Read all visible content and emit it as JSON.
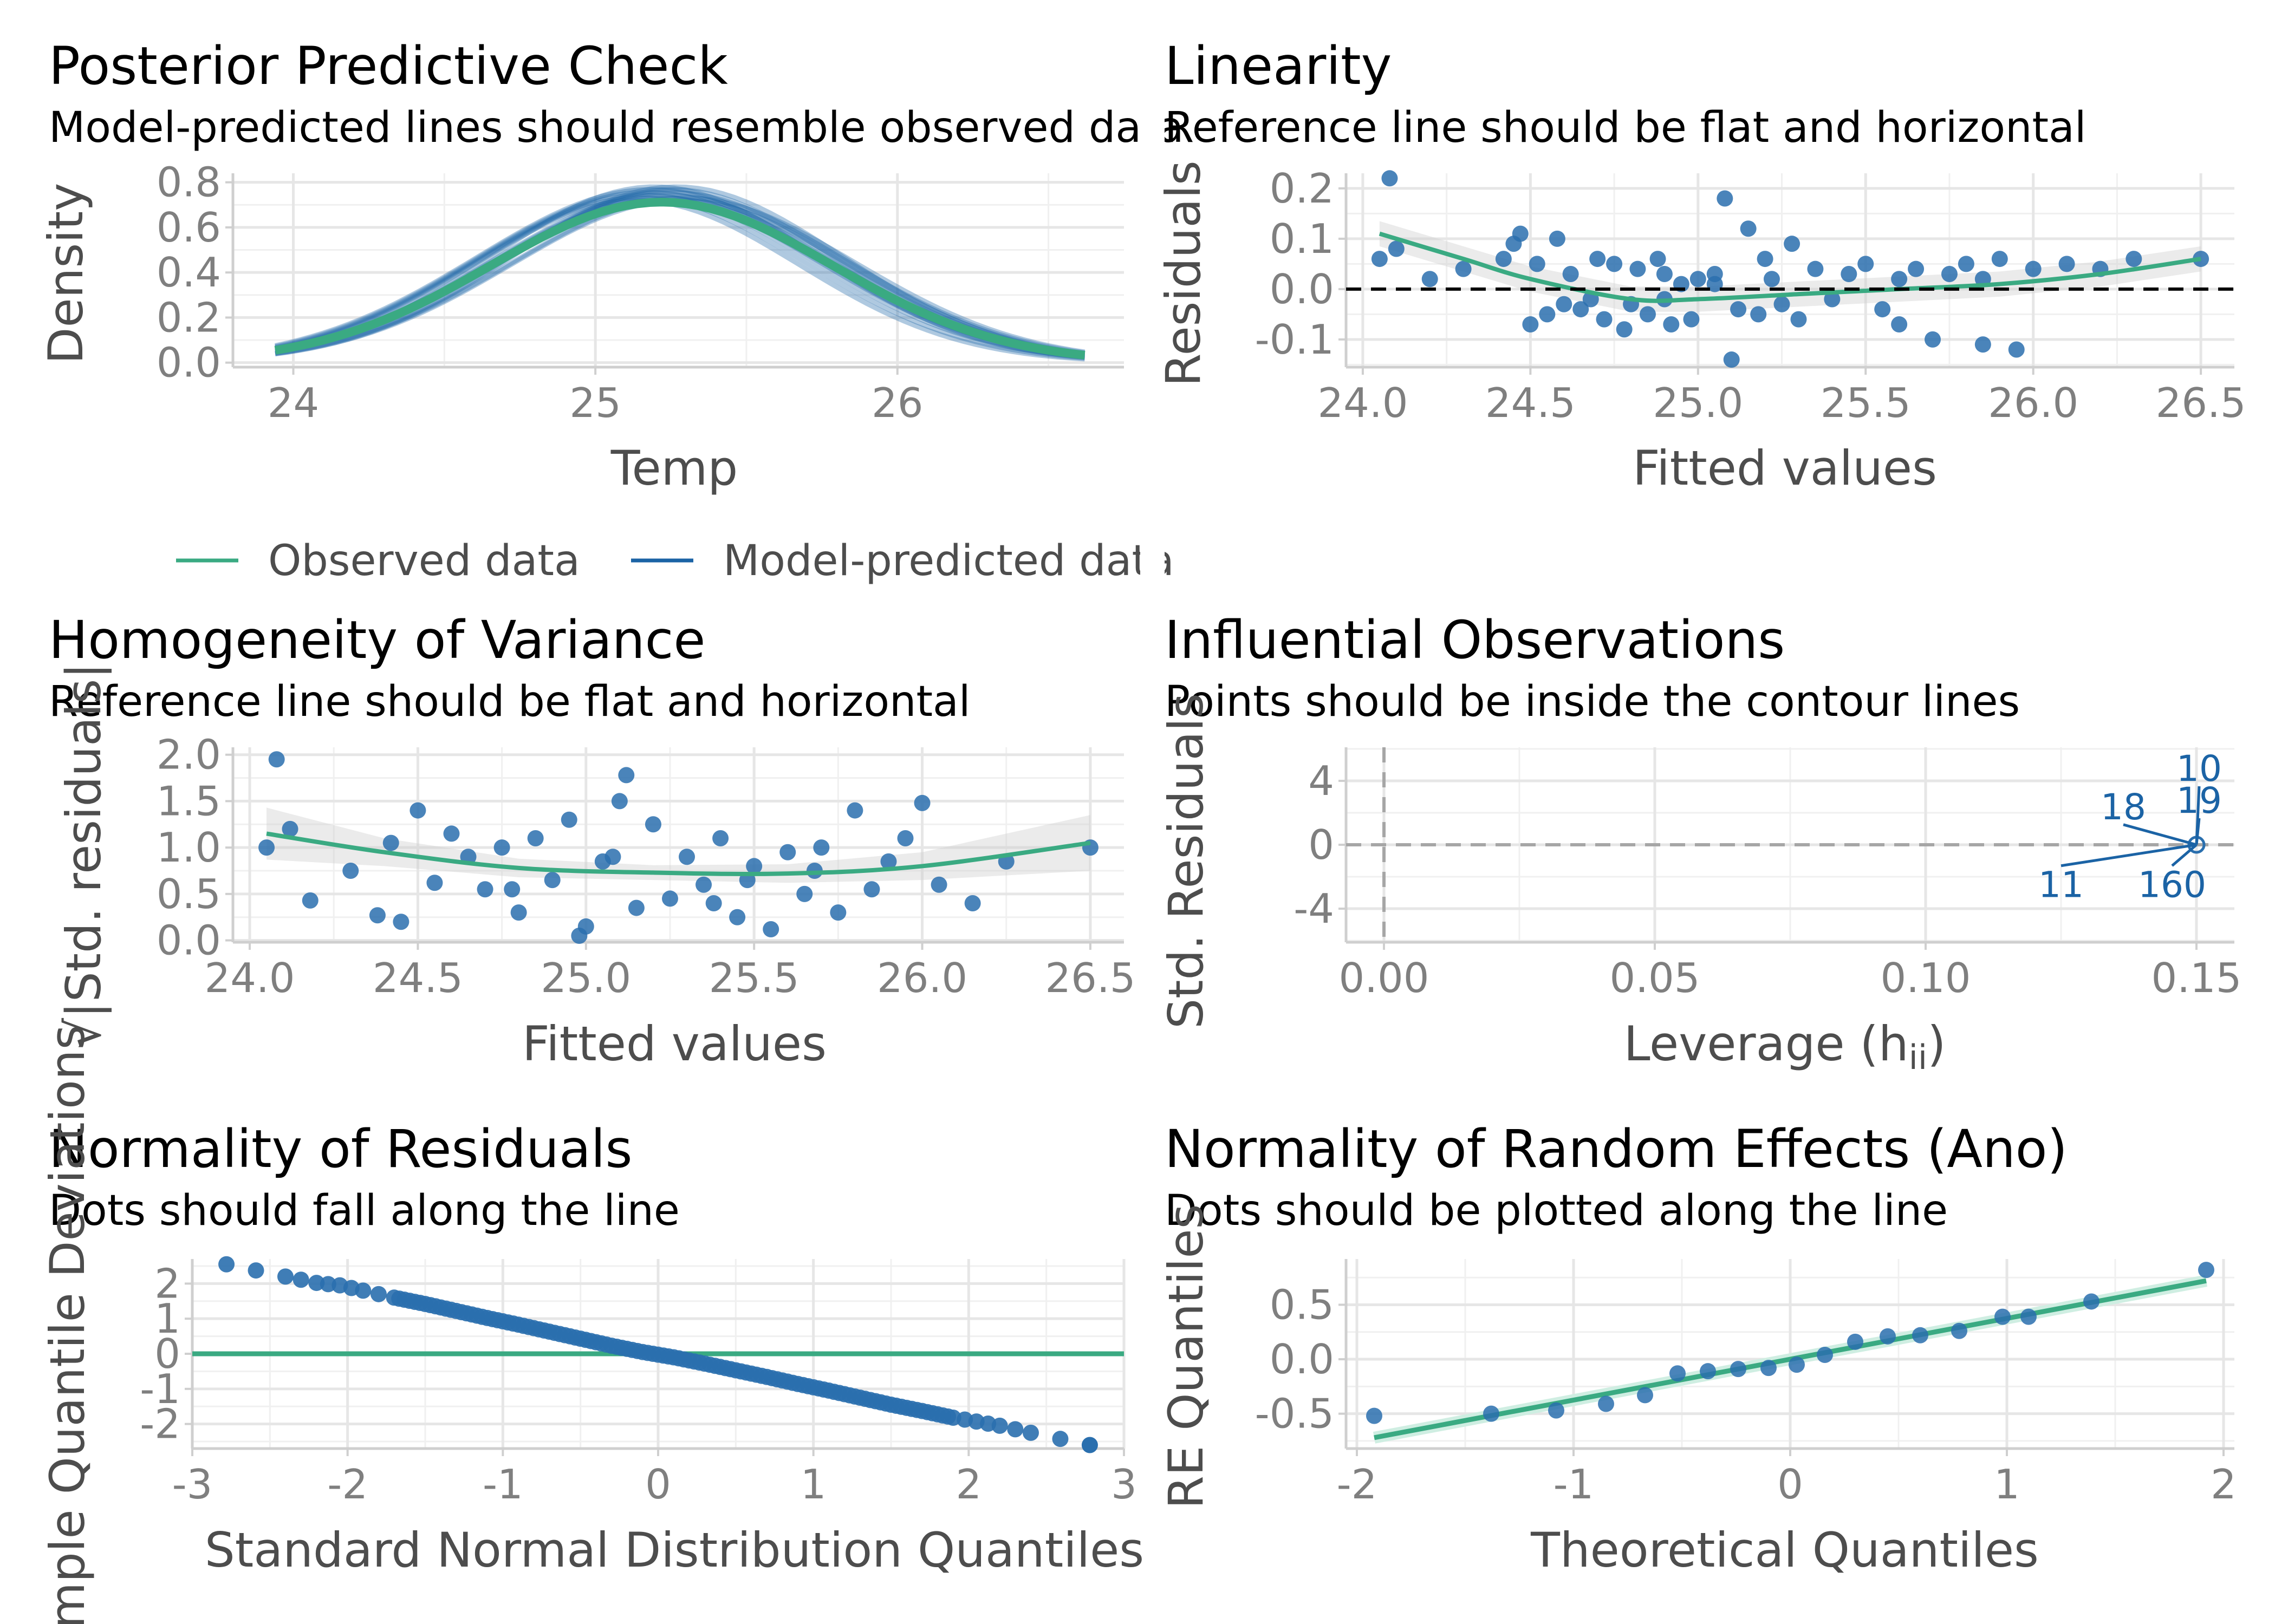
{
  "colors": {
    "observed": "#3aaa82",
    "predicted": "#1b63a5",
    "points": "#2a6fae",
    "grid": "#e6e6e6",
    "axis": "#cfcfcf",
    "tick_text": "#7f7f7f",
    "axis_title": "#4d4d4d"
  },
  "chart_data": [
    {
      "id": "ppc",
      "type": "line",
      "title": "Posterior Predictive Check",
      "subtitle": "Model-predicted lines should resemble observed data",
      "xlabel": "Temp",
      "ylabel": "Density",
      "xlim": [
        23.8,
        26.75
      ],
      "ylim": [
        -0.02,
        0.84
      ],
      "xticks": [
        24,
        25,
        26
      ],
      "xtick_labels": [
        "24",
        "25",
        "26"
      ],
      "yticks": [
        0.0,
        0.2,
        0.4,
        0.6,
        0.8
      ],
      "ytick_labels": [
        "0.0",
        "0.2",
        "0.4",
        "0.6",
        "0.8"
      ],
      "grid": true,
      "density_mean": 25.22,
      "density_sd": 0.565,
      "series": [
        {
          "name": "Observed data",
          "x": [
            23.94,
            24.2,
            24.5,
            24.8,
            25.0,
            25.22,
            25.5,
            25.8,
            26.1,
            26.4,
            26.62
          ],
          "y": [
            0.025,
            0.08,
            0.24,
            0.53,
            0.65,
            0.71,
            0.63,
            0.39,
            0.18,
            0.07,
            0.03
          ]
        },
        {
          "name": "Model-predicted data",
          "x": [
            23.94,
            24.2,
            24.5,
            24.8,
            25.0,
            25.22,
            25.5,
            25.8,
            26.1,
            26.4,
            26.62
          ],
          "y": [
            0.035,
            0.09,
            0.26,
            0.56,
            0.7,
            0.75,
            0.66,
            0.4,
            0.17,
            0.06,
            0.03
          ]
        }
      ],
      "legend": {
        "position": "bottom",
        "entries": [
          "Observed data",
          "Model-predicted data"
        ]
      }
    },
    {
      "id": "linearity",
      "type": "scatter",
      "title": "Linearity",
      "subtitle": "Reference line should be flat and horizontal",
      "xlabel": "Fitted values",
      "ylabel": "Residuals",
      "xlim": [
        23.95,
        26.6
      ],
      "ylim": [
        -0.155,
        0.23
      ],
      "xticks": [
        24.0,
        24.5,
        25.0,
        25.5,
        26.0,
        26.5
      ],
      "xtick_labels": [
        "24.0",
        "24.5",
        "25.0",
        "25.5",
        "26.0",
        "26.5"
      ],
      "yticks": [
        -0.1,
        0.0,
        0.1,
        0.2
      ],
      "ytick_labels": [
        "-0.1",
        "0.0",
        "0.1",
        "0.2"
      ],
      "grid": true,
      "reference_y": 0,
      "smooth": {
        "x": [
          24.05,
          24.3,
          24.5,
          24.8,
          25.0,
          25.3,
          25.6,
          25.9,
          26.2,
          26.5
        ],
        "y": [
          0.11,
          0.06,
          0.02,
          -0.02,
          -0.02,
          -0.01,
          0.0,
          0.01,
          0.03,
          0.06
        ]
      },
      "points": {
        "x": [
          24.08,
          24.05,
          24.1,
          24.2,
          24.3,
          24.42,
          24.45,
          24.47,
          24.5,
          24.52,
          24.55,
          24.58,
          24.6,
          24.62,
          24.65,
          24.68,
          24.7,
          24.72,
          24.75,
          24.78,
          24.8,
          24.82,
          24.85,
          24.88,
          24.9,
          24.92,
          24.95,
          24.98,
          25.0,
          25.05,
          25.08,
          25.1,
          25.12,
          25.15,
          25.18,
          25.2,
          25.22,
          25.25,
          25.28,
          25.3,
          25.35,
          25.4,
          25.45,
          25.5,
          25.55,
          25.6,
          25.65,
          25.7,
          25.75,
          25.8,
          25.85,
          25.9,
          25.95,
          26.0,
          26.1,
          26.2,
          26.3,
          26.5,
          24.9,
          25.05,
          25.6,
          25.85
        ],
        "y": [
          0.22,
          0.06,
          0.08,
          0.02,
          0.04,
          0.06,
          0.09,
          0.11,
          -0.07,
          0.05,
          -0.05,
          0.1,
          -0.03,
          0.03,
          -0.04,
          -0.02,
          0.06,
          -0.06,
          0.05,
          -0.08,
          -0.03,
          0.04,
          -0.05,
          0.06,
          -0.02,
          -0.07,
          0.01,
          -0.06,
          0.02,
          0.03,
          0.18,
          -0.14,
          -0.04,
          0.12,
          -0.05,
          0.06,
          0.02,
          -0.03,
          0.09,
          -0.06,
          0.04,
          -0.02,
          0.03,
          0.05,
          -0.04,
          0.02,
          0.04,
          -0.1,
          0.03,
          0.05,
          -0.11,
          0.06,
          -0.12,
          0.04,
          0.05,
          0.04,
          0.06,
          0.06,
          0.03,
          0.01,
          -0.07,
          0.02
        ]
      }
    },
    {
      "id": "homogeneity",
      "type": "scatter",
      "title": "Homogeneity of Variance",
      "subtitle": "Reference line should be flat and horizontal",
      "xlabel": "Fitted values",
      "ylabel": "√|Std. residuals|",
      "xlim": [
        23.95,
        26.6
      ],
      "ylim": [
        -0.02,
        2.08
      ],
      "xticks": [
        24.0,
        24.5,
        25.0,
        25.5,
        26.0,
        26.5
      ],
      "xtick_labels": [
        "24.0",
        "24.5",
        "25.0",
        "25.5",
        "26.0",
        "26.5"
      ],
      "yticks": [
        0.0,
        0.5,
        1.0,
        1.5,
        2.0
      ],
      "ytick_labels": [
        "0.0",
        "0.5",
        "1.0",
        "1.5",
        "2.0"
      ],
      "grid": true,
      "smooth": {
        "x": [
          24.05,
          24.4,
          24.8,
          25.2,
          25.6,
          26.0,
          26.5
        ],
        "y": [
          1.15,
          0.95,
          0.78,
          0.73,
          0.72,
          0.8,
          1.05
        ]
      },
      "points": {
        "x": [
          24.05,
          24.08,
          24.12,
          24.18,
          24.3,
          24.38,
          24.42,
          24.45,
          24.5,
          24.55,
          24.6,
          24.65,
          24.7,
          24.75,
          24.8,
          24.85,
          24.9,
          24.95,
          25.0,
          25.05,
          25.1,
          25.12,
          25.15,
          25.2,
          25.25,
          25.3,
          25.35,
          25.4,
          25.45,
          25.5,
          25.55,
          25.6,
          25.65,
          25.7,
          25.75,
          25.8,
          25.85,
          25.9,
          25.95,
          26.0,
          26.05,
          26.15,
          26.25,
          26.5,
          24.78,
          25.08,
          25.48,
          25.68,
          24.98,
          25.38
        ],
        "y": [
          1.0,
          1.95,
          1.2,
          0.43,
          0.75,
          0.27,
          1.05,
          0.2,
          1.4,
          0.62,
          1.15,
          0.9,
          0.55,
          1.0,
          0.3,
          1.1,
          0.65,
          1.3,
          0.15,
          0.85,
          1.5,
          1.78,
          0.35,
          1.25,
          0.45,
          0.9,
          0.6,
          1.1,
          0.25,
          0.8,
          0.12,
          0.95,
          0.5,
          1.0,
          0.3,
          1.4,
          0.55,
          0.85,
          1.1,
          1.48,
          0.6,
          0.4,
          0.85,
          1.0,
          0.55,
          0.9,
          0.65,
          0.75,
          0.05,
          0.4
        ]
      }
    },
    {
      "id": "influential",
      "type": "scatter",
      "title": "Influential Observations",
      "subtitle": "Points should be inside the contour lines",
      "xlabel": "Leverage (h",
      "xlabel_sub": "ii",
      "xlabel_close": ")",
      "ylabel": "Std. Residuals",
      "xlim": [
        -0.007,
        0.157
      ],
      "ylim": [
        -6.1,
        6.1
      ],
      "xticks": [
        0.0,
        0.05,
        0.1,
        0.15
      ],
      "xtick_labels": [
        "0.00",
        "0.05",
        "0.10",
        "0.15"
      ],
      "yticks": [
        -4,
        0,
        4
      ],
      "ytick_labels": [
        "-4",
        "0",
        "4"
      ],
      "grid": true,
      "points": {
        "x": [
          0.15
        ],
        "y": [
          0.0
        ]
      },
      "labels": [
        {
          "text": "10",
          "x": 0.1505,
          "y": 4.0
        },
        {
          "text": "19",
          "x": 0.1505,
          "y": 2.0
        },
        {
          "text": "18",
          "x": 0.1365,
          "y": 1.6
        },
        {
          "text": "11",
          "x": 0.125,
          "y": -2.6
        },
        {
          "text": "160",
          "x": 0.1455,
          "y": -2.6
        }
      ]
    },
    {
      "id": "qq_residuals",
      "type": "scatter",
      "title": "Normality of Residuals",
      "subtitle": "Dots should fall along the line",
      "xlabel": "Standard Normal Distribution Quantiles",
      "ylabel": "Sample Quantile Deviations",
      "xlim": [
        -3.0,
        3.0
      ],
      "ylim": [
        -2.7,
        2.7
      ],
      "xticks": [
        -3,
        -2,
        -1,
        0,
        1,
        2,
        3
      ],
      "xtick_labels": [
        "-3",
        "-2",
        "-1",
        "0",
        "1",
        "2",
        "3"
      ],
      "yticks": [
        -2,
        -1,
        0,
        1,
        2
      ],
      "ytick_labels": [
        "-2",
        "-1",
        "0",
        "1",
        "2"
      ],
      "grid": true,
      "reference_y": 0,
      "points": {
        "x": [
          -2.78,
          -2.4,
          -2.2,
          -2.05,
          -1.9,
          -1.7,
          -1.5,
          -1.3,
          -1.1,
          -0.9,
          -0.7,
          -0.5,
          -0.3,
          -0.1,
          0.1,
          0.3,
          0.5,
          0.7,
          0.9,
          1.1,
          1.3,
          1.5,
          1.7,
          1.9,
          2.05,
          2.2,
          2.4,
          2.78
        ],
        "y": [
          2.55,
          2.2,
          2.02,
          1.95,
          1.8,
          1.6,
          1.42,
          1.22,
          1.02,
          0.83,
          0.63,
          0.43,
          0.23,
          0.05,
          -0.1,
          -0.28,
          -0.47,
          -0.66,
          -0.86,
          -1.05,
          -1.25,
          -1.45,
          -1.63,
          -1.82,
          -1.93,
          -2.05,
          -2.25,
          -2.6
        ]
      }
    },
    {
      "id": "qq_random_effects",
      "type": "scatter",
      "title": "Normality of Random Effects (Ano)",
      "subtitle": "Dots should be plotted along the line",
      "xlabel": "Theoretical Quantiles",
      "ylabel": "RE Quantiles",
      "xlim": [
        -2.05,
        2.05
      ],
      "ylim": [
        -0.82,
        0.92
      ],
      "xticks": [
        -2,
        -1,
        0,
        1,
        2
      ],
      "xtick_labels": [
        "-2",
        "-1",
        "0",
        "1",
        "2"
      ],
      "yticks": [
        -0.5,
        0.0,
        0.5
      ],
      "ytick_labels": [
        "-0.5",
        "0.0",
        "0.5"
      ],
      "grid": true,
      "fit_line": {
        "x": [
          -1.92,
          1.92
        ],
        "y": [
          -0.72,
          0.72
        ]
      },
      "points": {
        "x": [
          -1.92,
          -1.38,
          -1.08,
          -0.85,
          -0.67,
          -0.52,
          -0.38,
          -0.24,
          -0.1,
          0.03,
          0.16,
          0.3,
          0.45,
          0.6,
          0.78,
          0.98,
          1.1,
          1.39,
          1.92
        ],
        "y": [
          -0.52,
          -0.5,
          -0.47,
          -0.41,
          -0.33,
          -0.13,
          -0.11,
          -0.09,
          -0.08,
          -0.05,
          0.04,
          0.16,
          0.21,
          0.22,
          0.26,
          0.39,
          0.39,
          0.53,
          0.82
        ]
      }
    }
  ]
}
